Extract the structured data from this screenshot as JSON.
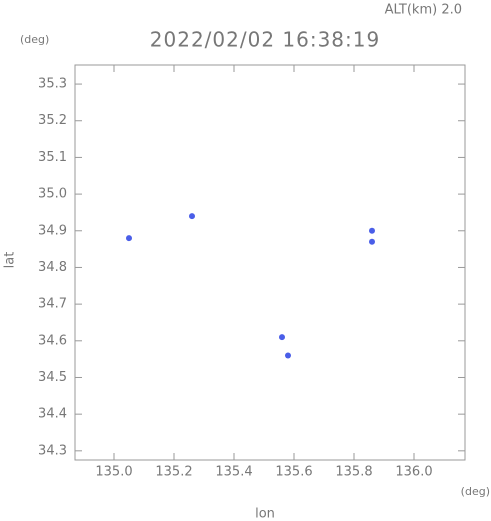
{
  "chart_data": {
    "type": "scatter",
    "title": "2022/02/02 16:38:19",
    "subtitle": "ALT(km) 2.0",
    "y_unit": "(deg)",
    "x_unit": "(deg)",
    "xlabel": "lon",
    "ylabel": "lat",
    "xlim": [
      134.87,
      136.17
    ],
    "ylim": [
      34.275,
      35.352
    ],
    "xticks": [
      {
        "value": 135.0,
        "label": "135.0"
      },
      135.2,
      135.4,
      135.6,
      135.8,
      {
        "value": 136.0,
        "label": "136.0"
      }
    ],
    "yticks": [
      34.3,
      34.4,
      34.5,
      34.6,
      34.7,
      34.8,
      34.9,
      {
        "value": 35.0,
        "label": "35.0"
      },
      35.1,
      35.2,
      35.3
    ],
    "color": "#4a5ee8",
    "x": [
      135.05,
      135.26,
      135.58,
      135.86,
      135.86,
      135.56
    ],
    "y": [
      34.88,
      34.94,
      34.56,
      34.9,
      34.87,
      34.61
    ]
  }
}
